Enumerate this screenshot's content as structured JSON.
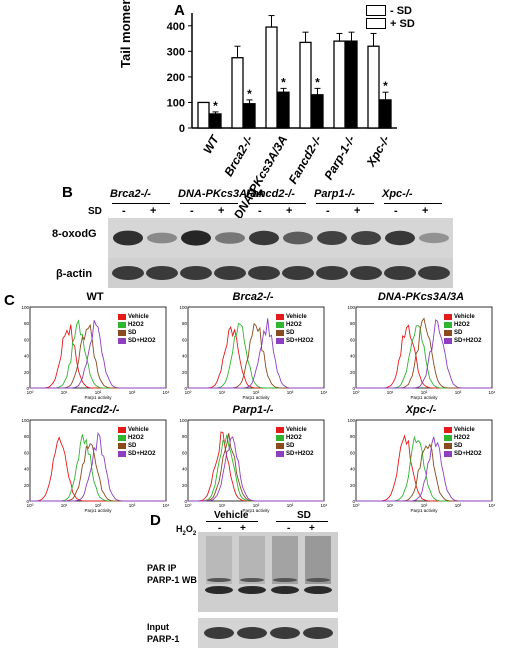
{
  "panel_a": {
    "label": "A",
    "legend": [
      "- SD",
      "+ SD"
    ],
    "ylabel": "Tail moment",
    "yticks": [
      "0",
      "100",
      "200",
      "300",
      "400"
    ],
    "chart_data": {
      "type": "bar",
      "categories": [
        "WT",
        "Brca2-/-",
        "DNA-PKcs3A/3A",
        "Fancd2-/-",
        "Parp-1-/-",
        "Xpc-/-"
      ],
      "ylim": [
        0,
        450
      ],
      "ylabel": "Tail moment",
      "series": [
        {
          "name": "- SD",
          "values": [
            100,
            275,
            395,
            335,
            340,
            320
          ],
          "errors": [
            0,
            45,
            45,
            40,
            30,
            50
          ]
        },
        {
          "name": "+ SD",
          "values": [
            55,
            95,
            140,
            130,
            340,
            110
          ],
          "errors": [
            8,
            15,
            15,
            25,
            35,
            30
          ]
        }
      ],
      "significance": [
        "*",
        "*",
        "*",
        "*",
        "",
        "*"
      ]
    }
  },
  "panel_b": {
    "label": "B",
    "groups": [
      "Brca2-/-",
      "DNA-PKcs3A/3A",
      "Fancd2-/-",
      "Parp1-/-",
      "Xpc-/-"
    ],
    "sd_label": "SD",
    "signs": [
      "-",
      "+",
      "-",
      "+",
      "-",
      "+",
      "-",
      "+",
      "-",
      "+"
    ],
    "row1": "8-oxodG",
    "row2": "β-actin"
  },
  "panel_c": {
    "label": "C",
    "plots": [
      {
        "title": "WT",
        "italic": false
      },
      {
        "title": "Brca2-/-",
        "italic": true
      },
      {
        "title": "DNA-PKcs3A/3A",
        "italic": true
      },
      {
        "title": "Fancd2-/-",
        "italic": true
      },
      {
        "title": "Parp1-/-",
        "italic": true
      },
      {
        "title": "Xpc-/-",
        "italic": true
      }
    ],
    "legend": [
      "Vehicle",
      "H2O2",
      "SD",
      "SD+H2O2"
    ],
    "legend_colors": [
      "#e21a1a",
      "#2fb52f",
      "#8a4b1e",
      "#8e3fbf"
    ],
    "xlabel": "Parp1 activity",
    "yticks": [
      "0",
      "20",
      "40",
      "60",
      "80",
      "100"
    ],
    "xticks": [
      "10⁰",
      "10¹",
      "10²",
      "10³",
      "10⁴"
    ]
  },
  "panel_d": {
    "label": "D",
    "vehicle": "Vehicle",
    "sd": "SD",
    "h2o2": "H2O2",
    "signs": [
      "-",
      "+",
      "-",
      "+"
    ],
    "row1a": "PAR IP",
    "row1b": "PARP-1 WB",
    "row2a": "Input",
    "row2b": "PARP-1"
  }
}
